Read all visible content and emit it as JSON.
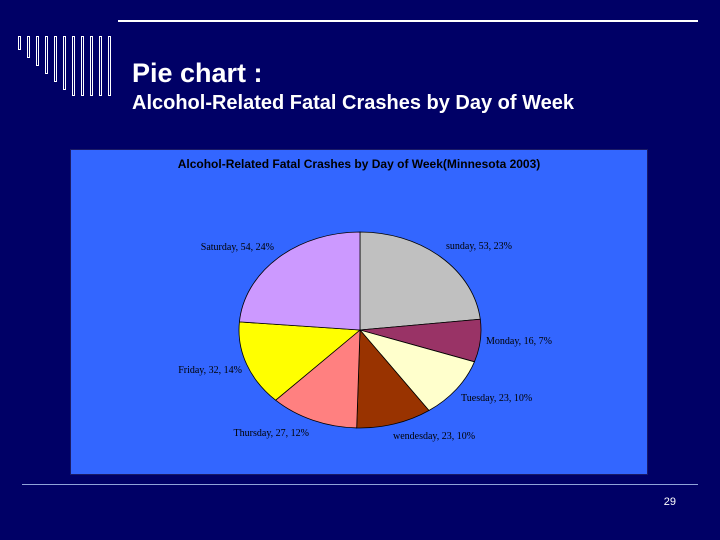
{
  "slide": {
    "title_line1": "Pie chart :",
    "title_line2": "Alcohol-Related Fatal Crashes by Day of Week",
    "page_number": "29"
  },
  "colors": {
    "background": "#000066",
    "chart_background": "#3366ff"
  },
  "chart_data": {
    "type": "pie",
    "title": "Alcohol-Related Fatal Crashes by Day of Week(Minnesota 2003)",
    "slices": [
      {
        "label": "sunday, 53, 23%",
        "category": "sunday",
        "value": 53,
        "percent": 23,
        "color": "#c0c0c0"
      },
      {
        "label": "Monday, 16, 7%",
        "category": "Monday",
        "value": 16,
        "percent": 7,
        "color": "#993366"
      },
      {
        "label": "Tuesday, 23, 10%",
        "category": "Tuesday",
        "value": 23,
        "percent": 10,
        "color": "#ffffcc"
      },
      {
        "label": "wendesday, 23, 10%",
        "category": "wendesday",
        "value": 23,
        "percent": 10,
        "color": "#993300"
      },
      {
        "label": "Thursday, 27, 12%",
        "category": "Thursday",
        "value": 27,
        "percent": 12,
        "color": "#ff8080"
      },
      {
        "label": "Friday, 32, 14%",
        "category": "Friday",
        "value": 32,
        "percent": 14,
        "color": "#ffff00"
      },
      {
        "label": "Saturday, 54, 24%",
        "category": "Saturday",
        "value": 54,
        "percent": 24,
        "color": "#cc99ff"
      }
    ]
  }
}
